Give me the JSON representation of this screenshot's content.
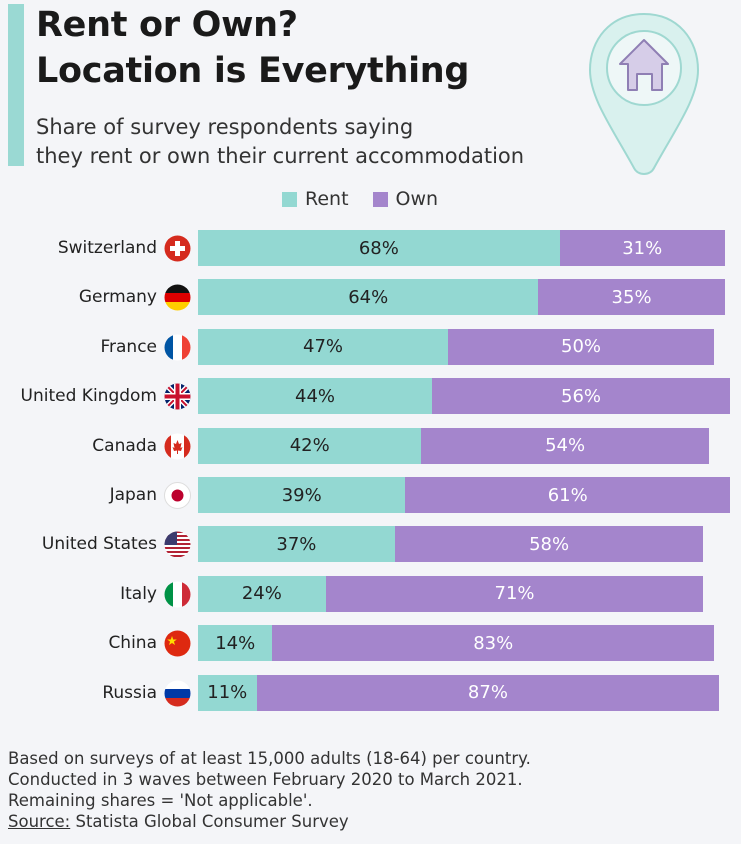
{
  "header": {
    "title_line1": "Rent or Own?",
    "title_line2": "Location is Everything",
    "subtitle_line1": "Share of survey respondents saying",
    "subtitle_line2": "they rent or own their current accommodation",
    "icon": "location-pin-house-icon"
  },
  "colors": {
    "rent": "#93d8d2",
    "own": "#a485cc",
    "accent": "#9ad9d3"
  },
  "chart_data": {
    "type": "bar",
    "orientation": "horizontal-stacked",
    "title": "Rent or Own? Location is Everything",
    "legend": [
      "Rent",
      "Own"
    ],
    "legend_placement": "top",
    "unit": "%",
    "categories": [
      "Switzerland",
      "Germany",
      "France",
      "United Kingdom",
      "Canada",
      "Japan",
      "United States",
      "Italy",
      "China",
      "Russia"
    ],
    "flags": [
      "switzerland-flag-icon",
      "germany-flag-icon",
      "france-flag-icon",
      "uk-flag-icon",
      "canada-flag-icon",
      "japan-flag-icon",
      "usa-flag-icon",
      "italy-flag-icon",
      "china-flag-icon",
      "russia-flag-icon"
    ],
    "series": [
      {
        "name": "Rent",
        "values": [
          68,
          64,
          47,
          44,
          42,
          39,
          37,
          24,
          14,
          11
        ],
        "labels": [
          "68%",
          "64%",
          "47%",
          "44%",
          "42%",
          "39%",
          "37%",
          "24%",
          "14%",
          "11%"
        ]
      },
      {
        "name": "Own",
        "values": [
          31,
          35,
          50,
          56,
          54,
          61,
          58,
          71,
          83,
          87
        ],
        "labels": [
          "31%",
          "35%",
          "50%",
          "56%",
          "54%",
          "61%",
          "58%",
          "71%",
          "83%",
          "87%"
        ]
      }
    ],
    "xlim": [
      0,
      100
    ]
  },
  "footer": {
    "note1": "Based on surveys of at least 15,000 adults (18-64) per country.",
    "note2": "Conducted in 3 waves between February 2020 to March 2021.",
    "note3": "Remaining shares = 'Not applicable'.",
    "source_label": "Source:",
    "source": "Statista Global Consumer Survey"
  }
}
